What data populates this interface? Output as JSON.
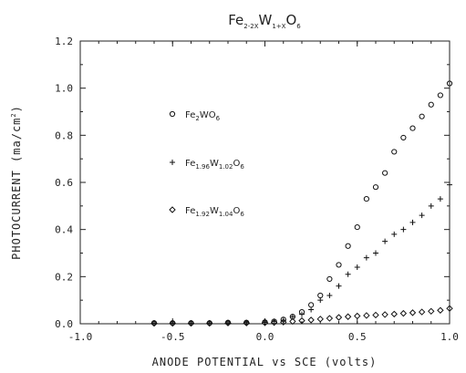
{
  "chart_data": {
    "type": "scatter",
    "title": {
      "base1": "Fe",
      "sub1": "2-2X",
      "base2": "W",
      "sub2": "1+X",
      "base3": "O",
      "sub3": "6"
    },
    "xlabel": "ANODE POTENTIAL vs SCE (volts)",
    "ylabel": "PHOTOCURRENT (ma/cm",
    "ylabel_sup": "2",
    "ylabel_end": ")",
    "xlim": [
      -1.0,
      1.0
    ],
    "ylim": [
      0.0,
      1.2
    ],
    "x_ticks": [
      "-1.0",
      "-0.5",
      "0.0",
      "0.5",
      "1.0"
    ],
    "y_ticks": [
      "0.0",
      "0.2",
      "0.4",
      "0.6",
      "0.8",
      "1.0",
      "1.2"
    ],
    "grid": false,
    "series": [
      {
        "marker": "circle",
        "legend": {
          "parts": [
            [
              "Fe",
              ""
            ],
            [
              "2",
              "sub"
            ],
            [
              "WO",
              ""
            ],
            [
              "6",
              "sub"
            ]
          ]
        },
        "points": [
          [
            -0.6,
            0.003
          ],
          [
            -0.5,
            0.003
          ],
          [
            -0.4,
            0.003
          ],
          [
            -0.3,
            0.003
          ],
          [
            -0.2,
            0.005
          ],
          [
            -0.1,
            0.005
          ],
          [
            0.0,
            0.007
          ],
          [
            0.05,
            0.01
          ],
          [
            0.1,
            0.018
          ],
          [
            0.15,
            0.03
          ],
          [
            0.2,
            0.05
          ],
          [
            0.25,
            0.08
          ],
          [
            0.3,
            0.12
          ],
          [
            0.35,
            0.19
          ],
          [
            0.4,
            0.25
          ],
          [
            0.45,
            0.33
          ],
          [
            0.5,
            0.41
          ],
          [
            0.55,
            0.53
          ],
          [
            0.6,
            0.58
          ],
          [
            0.65,
            0.64
          ],
          [
            0.7,
            0.73
          ],
          [
            0.75,
            0.79
          ],
          [
            0.8,
            0.83
          ],
          [
            0.85,
            0.88
          ],
          [
            0.9,
            0.93
          ],
          [
            0.95,
            0.97
          ],
          [
            1.0,
            1.02
          ]
        ]
      },
      {
        "marker": "plus",
        "legend": {
          "parts": [
            [
              "Fe",
              ""
            ],
            [
              "1.96",
              "sub"
            ],
            [
              "W",
              ""
            ],
            [
              "1.02",
              "sub"
            ],
            [
              "O",
              ""
            ],
            [
              "6",
              "sub"
            ]
          ]
        },
        "points": [
          [
            -0.6,
            0.003
          ],
          [
            -0.5,
            0.003
          ],
          [
            -0.4,
            0.003
          ],
          [
            -0.3,
            0.003
          ],
          [
            -0.2,
            0.004
          ],
          [
            -0.1,
            0.005
          ],
          [
            0.0,
            0.006
          ],
          [
            0.05,
            0.01
          ],
          [
            0.1,
            0.015
          ],
          [
            0.15,
            0.03
          ],
          [
            0.2,
            0.04
          ],
          [
            0.25,
            0.06
          ],
          [
            0.3,
            0.1
          ],
          [
            0.35,
            0.12
          ],
          [
            0.4,
            0.16
          ],
          [
            0.45,
            0.21
          ],
          [
            0.5,
            0.24
          ],
          [
            0.55,
            0.28
          ],
          [
            0.6,
            0.3
          ],
          [
            0.65,
            0.35
          ],
          [
            0.7,
            0.38
          ],
          [
            0.75,
            0.4
          ],
          [
            0.8,
            0.43
          ],
          [
            0.85,
            0.46
          ],
          [
            0.9,
            0.5
          ],
          [
            0.95,
            0.53
          ],
          [
            1.0,
            0.59
          ]
        ]
      },
      {
        "marker": "diamond",
        "legend": {
          "parts": [
            [
              "Fe",
              ""
            ],
            [
              "1.92",
              "sub"
            ],
            [
              "W",
              ""
            ],
            [
              "1.04",
              "sub"
            ],
            [
              "O",
              ""
            ],
            [
              "6",
              "sub"
            ]
          ]
        },
        "points": [
          [
            -0.6,
            0.002
          ],
          [
            -0.5,
            0.002
          ],
          [
            -0.4,
            0.002
          ],
          [
            -0.3,
            0.002
          ],
          [
            -0.2,
            0.003
          ],
          [
            -0.1,
            0.003
          ],
          [
            0.0,
            0.004
          ],
          [
            0.05,
            0.005
          ],
          [
            0.1,
            0.007
          ],
          [
            0.15,
            0.01
          ],
          [
            0.2,
            0.013
          ],
          [
            0.25,
            0.016
          ],
          [
            0.3,
            0.02
          ],
          [
            0.35,
            0.023
          ],
          [
            0.4,
            0.027
          ],
          [
            0.45,
            0.03
          ],
          [
            0.5,
            0.033
          ],
          [
            0.55,
            0.035
          ],
          [
            0.6,
            0.037
          ],
          [
            0.65,
            0.039
          ],
          [
            0.7,
            0.041
          ],
          [
            0.75,
            0.044
          ],
          [
            0.8,
            0.047
          ],
          [
            0.85,
            0.05
          ],
          [
            0.9,
            0.053
          ],
          [
            0.95,
            0.057
          ],
          [
            1.0,
            0.065
          ]
        ]
      }
    ]
  }
}
